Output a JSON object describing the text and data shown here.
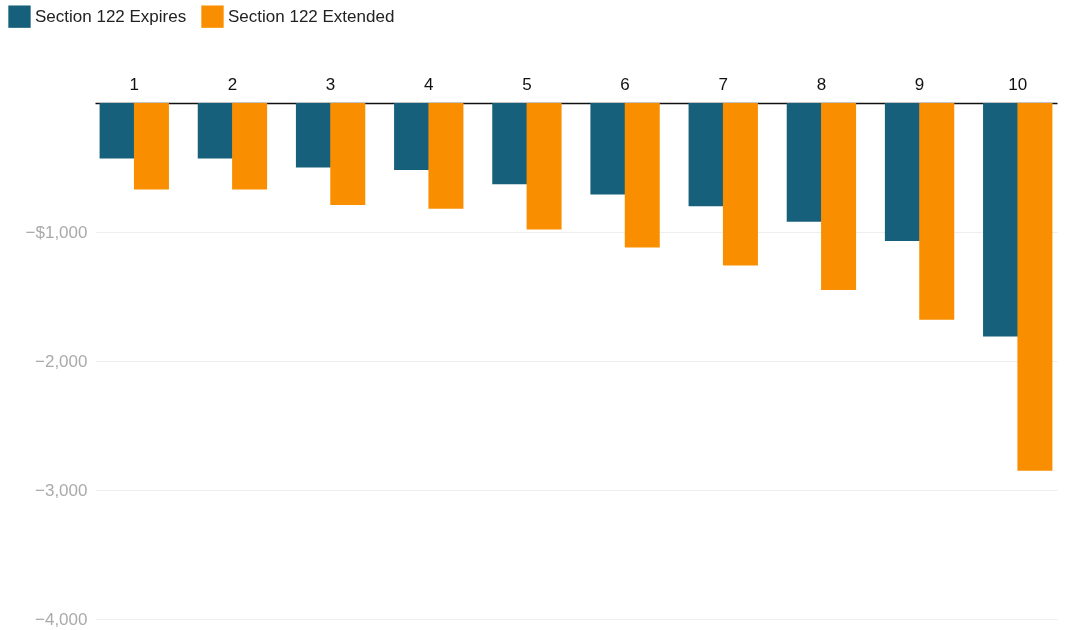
{
  "chart_data": {
    "type": "bar",
    "categories": [
      "1",
      "2",
      "3",
      "4",
      "5",
      "6",
      "7",
      "8",
      "9",
      "10"
    ],
    "series": [
      {
        "name": "Section 122 Expires",
        "color": "#17607b",
        "values": [
          -430,
          -430,
          -500,
          -520,
          -630,
          -710,
          -800,
          -920,
          -1070,
          -1810
        ]
      },
      {
        "name": "Section 122 Extended",
        "color": "#f98f00",
        "values": [
          -670,
          -670,
          -790,
          -820,
          -980,
          -1120,
          -1260,
          -1450,
          -1680,
          -2850
        ]
      }
    ],
    "ylim": [
      -4000,
      0
    ],
    "yticks": [
      {
        "value": -1000,
        "label": "−$1,000"
      },
      {
        "value": -2000,
        "label": "−2,000"
      },
      {
        "value": -3000,
        "label": "−3,000"
      },
      {
        "value": -4000,
        "label": "−4,000"
      }
    ],
    "grid": "y",
    "legend": "top left"
  }
}
